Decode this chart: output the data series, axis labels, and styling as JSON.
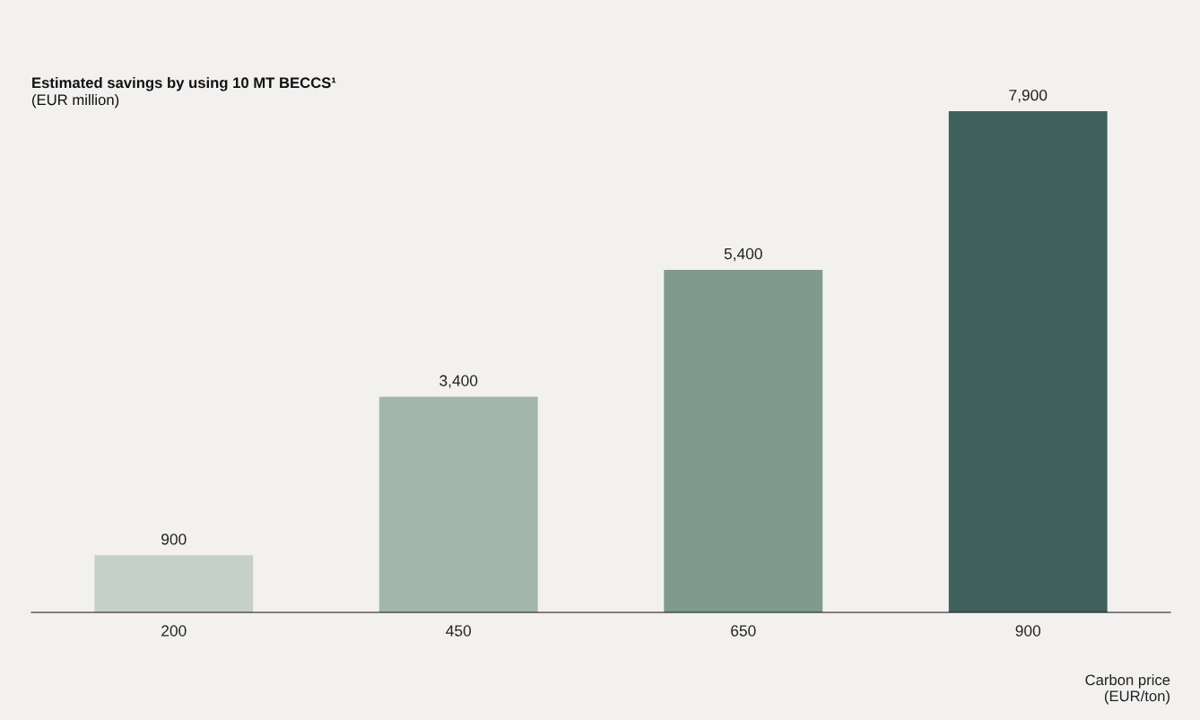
{
  "chart_data": {
    "type": "bar",
    "title": "Estimated savings by using 10 MT BECCS¹",
    "subtitle": "(EUR million)",
    "categories": [
      "200",
      "450",
      "650",
      "900"
    ],
    "values": [
      900,
      3400,
      5400,
      7900
    ],
    "colors": [
      "#c5d0cb",
      "#a2b6ad",
      "#7f9b8e",
      "#40605e"
    ],
    "xlabel": "Carbon price\n(EUR/ton)",
    "data_labels": true,
    "value_labels": [
      "900",
      "3,400",
      "5,400",
      "7,900"
    ]
  }
}
